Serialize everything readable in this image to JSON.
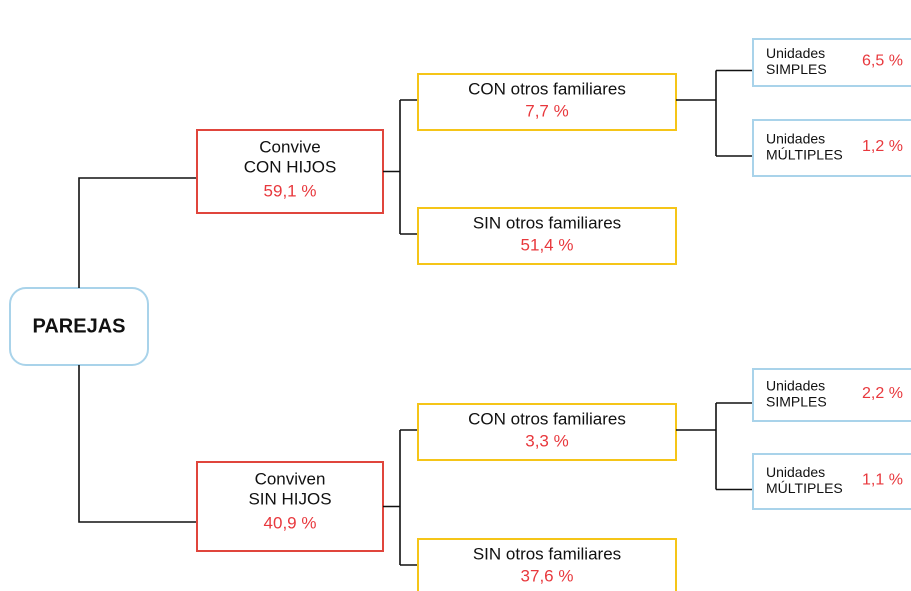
{
  "root": {
    "label": "PAREJAS"
  },
  "groups": [
    {
      "label": [
        "Convive",
        "CON HIJOS"
      ],
      "value": "59,1 %",
      "children": [
        {
          "label": "CON otros familiares",
          "value": "7,7 %",
          "children": [
            {
              "label": [
                "Unidades",
                "SIMPLES"
              ],
              "value": "6,5 %"
            },
            {
              "label": [
                "Unidades",
                "MÚLTIPLES"
              ],
              "value": "1,2 %"
            }
          ]
        },
        {
          "label": "SIN otros familiares",
          "value": "51,4 %"
        }
      ]
    },
    {
      "label": [
        "Conviven",
        "SIN HIJOS"
      ],
      "value": "40,9 %",
      "children": [
        {
          "label": "CON otros familiares",
          "value": "3,3 %",
          "children": [
            {
              "label": [
                "Unidades",
                "SIMPLES"
              ],
              "value": "2,2 %"
            },
            {
              "label": [
                "Unidades",
                "MÚLTIPLES"
              ],
              "value": "1,1 %"
            }
          ]
        },
        {
          "label": "SIN otros familiares",
          "value": "37,6 %"
        }
      ]
    }
  ]
}
